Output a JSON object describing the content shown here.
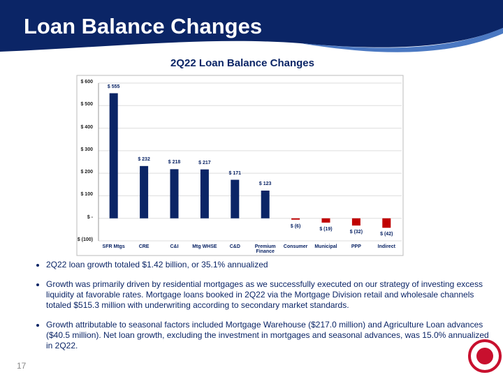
{
  "header": {
    "title": "Loan Balance Changes"
  },
  "chart_data": {
    "type": "bar",
    "title": "2Q22 Loan Balance Changes",
    "categories": [
      "SFR Mtgs",
      "CRE",
      "C&I",
      "Mtg WHSE",
      "C&D",
      "Premium Finance",
      "Consumer",
      "Municipal",
      "PPP",
      "Indirect"
    ],
    "values": [
      555,
      232,
      218,
      217,
      171,
      123,
      -6,
      -19,
      -32,
      -42
    ],
    "value_labels": [
      "$ 555",
      "$ 232",
      "$ 218",
      "$ 217",
      "$ 171",
      "$ 123",
      "$ (6)",
      "$ (19)",
      "$ (32)",
      "$ (42)"
    ],
    "color": "#0b2566",
    "negative_color": "#c00000",
    "ylim": [
      -100,
      600
    ],
    "yticks": [
      {
        "value": -100,
        "label": "$ (100)"
      },
      {
        "value": 0,
        "label": "$ -"
      },
      {
        "value": 100,
        "label": "$ 100"
      },
      {
        "value": 200,
        "label": "$ 200"
      },
      {
        "value": 300,
        "label": "$ 300"
      },
      {
        "value": 400,
        "label": "$ 400"
      },
      {
        "value": 500,
        "label": "$ 500"
      },
      {
        "value": 600,
        "label": "$ 600"
      }
    ],
    "grid": true
  },
  "bullets": [
    "2Q22 loan growth totaled $1.42 billion, or 35.1% annualized",
    "Growth was primarily driven by residential mortgages as we successfully executed on our strategy of investing excess liquidity at favorable rates.  Mortgage loans booked in 2Q22 via the Mortgage Division retail and wholesale channels totaled $515.3 million with underwriting according to secondary market standards.",
    "Growth attributable to seasonal factors included Mortgage Warehouse ($217.0 million) and Agriculture Loan advances ($40.5 million).  Net loan growth, excluding the investment in mortgages and seasonal advances, was 15.0% annualized in 2Q22."
  ],
  "page_number": "17"
}
